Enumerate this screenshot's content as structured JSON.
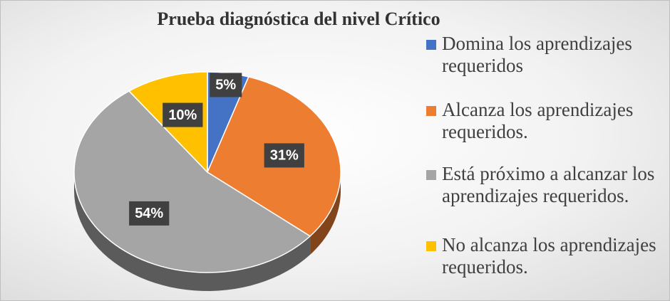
{
  "chart_data": {
    "type": "pie",
    "title": "Prueba diagnóstica del nivel Crítico",
    "categories": [
      "Domina los aprendizajes requeridos",
      "Alcanza los aprendizajes requeridos.",
      "Está próximo a alcanzar los aprendizajes requeridos.",
      "No alcanza los aprendizajes requeridos."
    ],
    "values": [
      5,
      31,
      54,
      10
    ],
    "value_labels": [
      "5%",
      "31%",
      "54%",
      "10%"
    ],
    "colors": [
      "#4472c4",
      "#ed7d31",
      "#a5a5a5",
      "#ffc000"
    ],
    "legend": "right"
  }
}
